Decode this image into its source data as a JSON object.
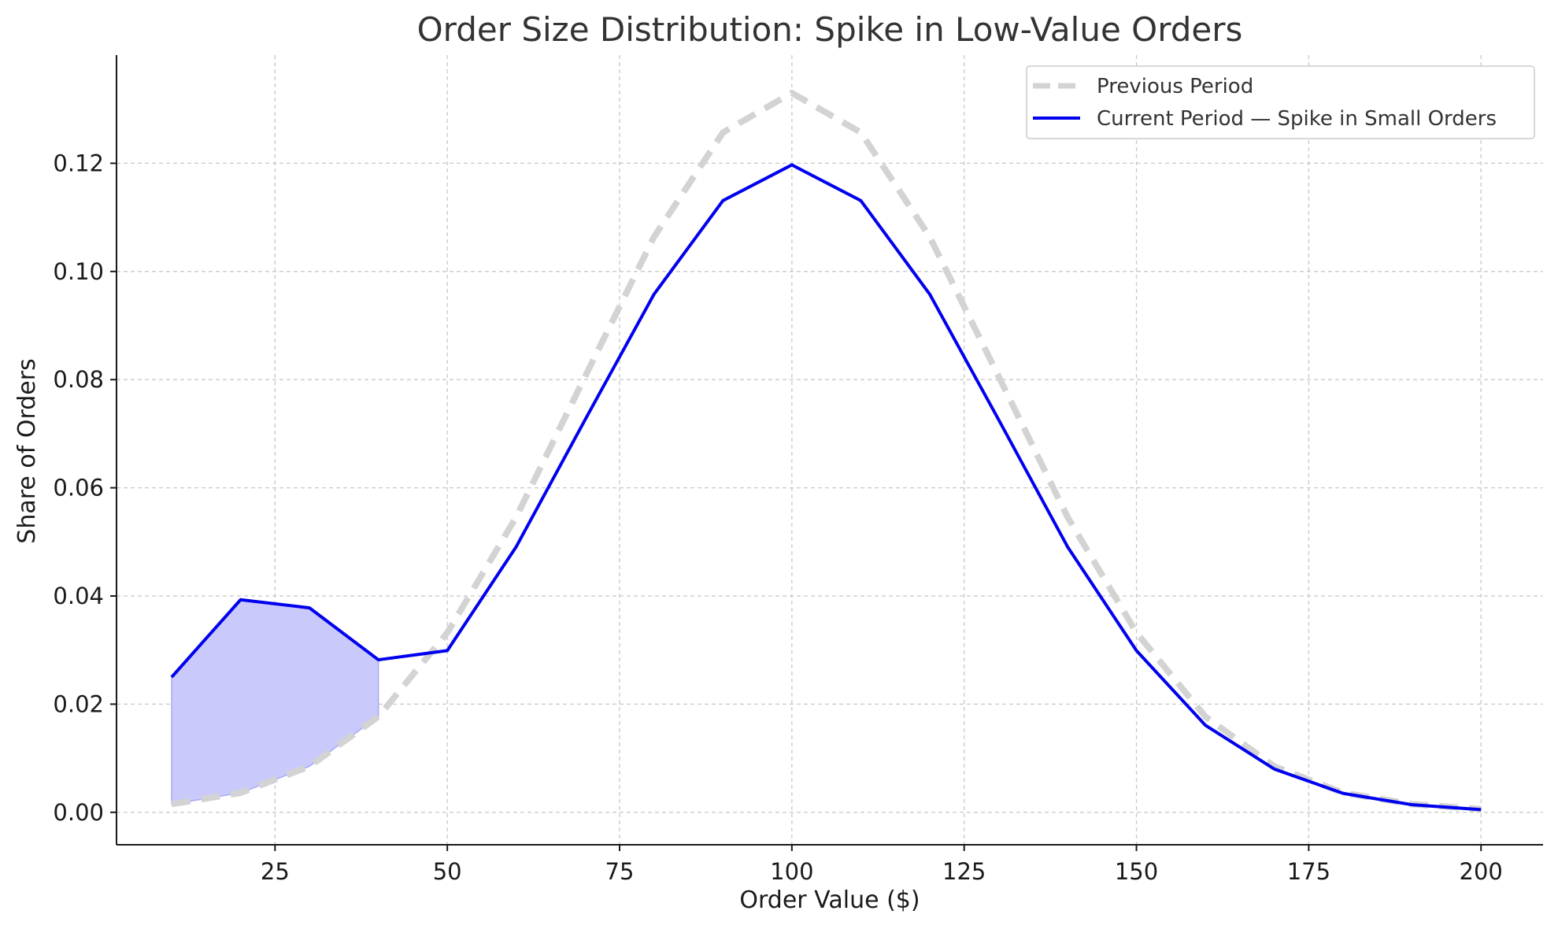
{
  "chart_data": {
    "type": "line",
    "title": "Order Size Distribution: Spike in Low-Value Orders",
    "xlabel": "Order Value ($)",
    "ylabel": "Share of Orders",
    "xlim": [
      2,
      209
    ],
    "ylim": [
      -0.006,
      0.14
    ],
    "xticks": [
      25,
      50,
      75,
      100,
      125,
      150,
      175,
      200
    ],
    "yticks": [
      0.0,
      0.02,
      0.04,
      0.06,
      0.08,
      0.1,
      0.12
    ],
    "grid": true,
    "legend_position": "top-right",
    "x": [
      10,
      20,
      30,
      40,
      50,
      60,
      70,
      80,
      90,
      100,
      110,
      120,
      130,
      140,
      150,
      160,
      170,
      180,
      190,
      200
    ],
    "series": [
      {
        "name": "Previous Period",
        "style": "dashed",
        "color": "#d3d3d3",
        "values": [
          0.0015,
          0.0036,
          0.0085,
          0.0177,
          0.0332,
          0.0546,
          0.0806,
          0.1064,
          0.1257,
          0.133,
          0.1257,
          0.1064,
          0.0806,
          0.0546,
          0.0332,
          0.0177,
          0.0085,
          0.0036,
          0.0015,
          0.0006
        ]
      },
      {
        "name": "Current Period — Spike in Small Orders",
        "style": "solid",
        "color": "#0000ee",
        "values": [
          0.025,
          0.0393,
          0.0378,
          0.0282,
          0.0299,
          0.0491,
          0.0726,
          0.0958,
          0.1131,
          0.1197,
          0.1131,
          0.0958,
          0.0726,
          0.0491,
          0.0299,
          0.0161,
          0.008,
          0.0035,
          0.0014,
          0.0005
        ]
      }
    ],
    "fill_between": {
      "x_range": [
        10,
        40
      ],
      "color": "#c9c9fb",
      "edge_color": "#a9a9f5"
    }
  }
}
